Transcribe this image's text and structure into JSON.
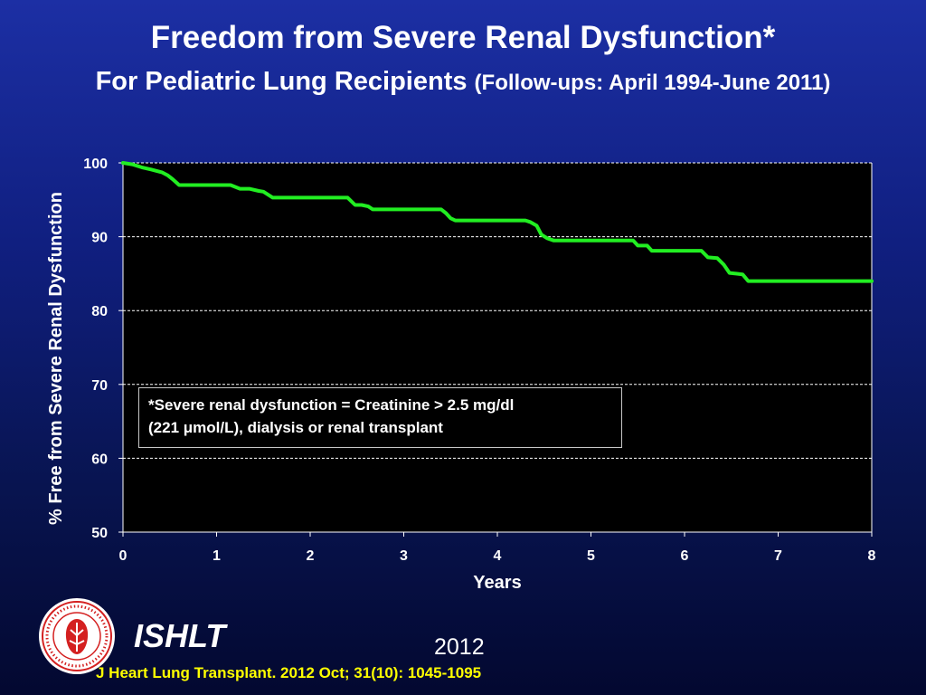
{
  "header": {
    "title": "Freedom from Severe Renal Dysfunction*",
    "subtitle_main": "For Pediatric Lung Recipients",
    "subtitle_paren": "(Follow-ups: April 1994-June 2011)"
  },
  "note": {
    "line1": "*Severe renal dysfunction = Creatinine > 2.5 mg/dl",
    "line2": "(221 μmol/L), dialysis or renal transplant"
  },
  "footer": {
    "org": "ISHLT",
    "year": "2012",
    "citation": "J Heart Lung Transplant.  2012 Oct; 31(10): 1045-1095"
  },
  "colors": {
    "curve": "#22ee22",
    "plot_background": "#000000",
    "citation": "#ffff00",
    "logo_accent": "#d42020"
  },
  "chart_data": {
    "type": "line",
    "xlabel": "Years",
    "ylabel": "% Free from Severe Renal Dysfunction",
    "xlim": [
      0,
      8
    ],
    "ylim": [
      50,
      100
    ],
    "xticks": [
      0,
      1,
      2,
      3,
      4,
      5,
      6,
      7,
      8
    ],
    "yticks": [
      50,
      60,
      70,
      80,
      90,
      100
    ],
    "grid": "horizontal dashed",
    "legend": "none",
    "series": [
      {
        "x": [
          0,
          0.1,
          0.2,
          0.3,
          0.42,
          0.48,
          0.53,
          0.6,
          1.15,
          1.25,
          1.35,
          1.45,
          1.5,
          1.6,
          2.4,
          2.48,
          2.55,
          2.62,
          2.67,
          3.4,
          3.45,
          3.5,
          3.55,
          4.3,
          4.35,
          4.42,
          4.47,
          4.53,
          4.6,
          5.45,
          5.5,
          5.6,
          5.65,
          6.18,
          6.25,
          6.35,
          6.42,
          6.48,
          6.55,
          6.62,
          6.68,
          8
        ],
        "y": [
          100,
          99.8,
          99.4,
          99.1,
          98.7,
          98.3,
          97.8,
          97.0,
          97.0,
          96.5,
          96.5,
          96.2,
          96.1,
          95.3,
          95.3,
          94.3,
          94.3,
          94.1,
          93.7,
          93.7,
          93.2,
          92.5,
          92.2,
          92.2,
          92.0,
          91.5,
          90.3,
          89.8,
          89.5,
          89.5,
          88.8,
          88.8,
          88.1,
          88.1,
          87.2,
          87.1,
          86.2,
          85.1,
          85.0,
          84.9,
          84.0,
          84.0
        ]
      }
    ]
  }
}
